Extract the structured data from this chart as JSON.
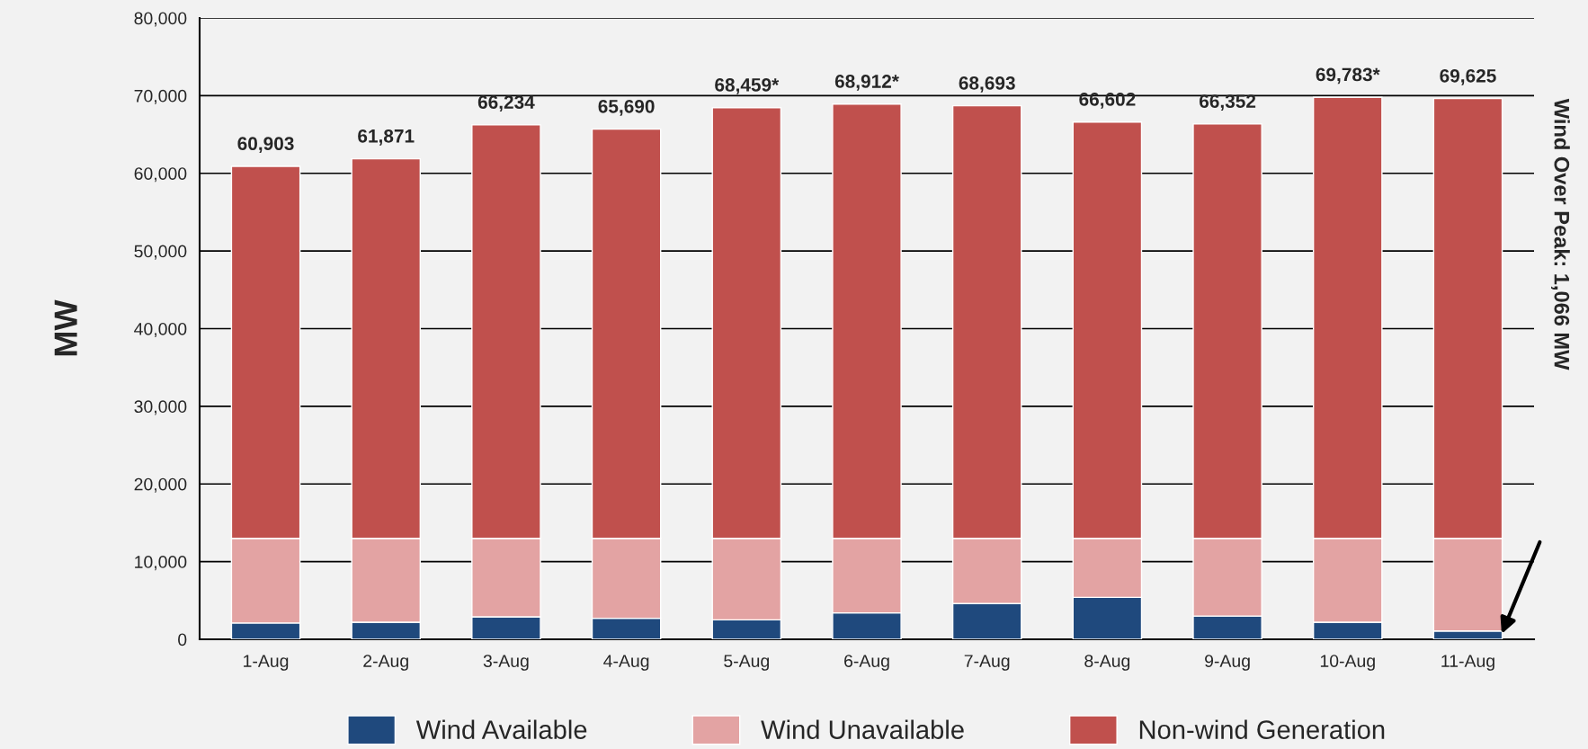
{
  "chart_data": {
    "type": "bar",
    "stacked": true,
    "ylabel": "MW",
    "categories": [
      "1-Aug",
      "2-Aug",
      "3-Aug",
      "4-Aug",
      "5-Aug",
      "6-Aug",
      "7-Aug",
      "8-Aug",
      "9-Aug",
      "10-Aug",
      "11-Aug"
    ],
    "series": [
      {
        "name": "Wind Available",
        "color": "#1f497d",
        "values": [
          2100,
          2200,
          2900,
          2700,
          2500,
          3400,
          4600,
          5400,
          3000,
          2200,
          1066
        ]
      },
      {
        "name": "Wind Unavailable",
        "color": "#e3a3a3",
        "values": [
          10900,
          10800,
          10100,
          10300,
          10500,
          9600,
          8400,
          7600,
          10000,
          10800,
          11934
        ]
      },
      {
        "name": "Non-wind Generation",
        "color": "#c0504d",
        "values": [
          47903,
          48871,
          53234,
          52690,
          55459,
          55912,
          55693,
          53602,
          53352,
          56783,
          56625
        ]
      }
    ],
    "totals": [
      "60,903",
      "61,871",
      "66,234",
      "65,690",
      "68,459*",
      "68,912*",
      "68,693",
      "66,602",
      "66,352",
      "69,783*",
      "69,625"
    ],
    "ylim": [
      0,
      80000
    ],
    "yticks": [
      {
        "value": 0,
        "label": "0"
      },
      {
        "value": 10000,
        "label": "10,000"
      },
      {
        "value": 20000,
        "label": "20,000"
      },
      {
        "value": 30000,
        "label": "30,000"
      },
      {
        "value": 40000,
        "label": "40,000"
      },
      {
        "value": 50000,
        "label": "50,000"
      },
      {
        "value": 60000,
        "label": "60,000"
      },
      {
        "value": 70000,
        "label": "70,000"
      },
      {
        "value": 80000,
        "label": "80,000"
      }
    ],
    "grid": "y",
    "legend": "bottom",
    "annotations": [
      "Wind Over Peak: 1,066 MW"
    ]
  }
}
